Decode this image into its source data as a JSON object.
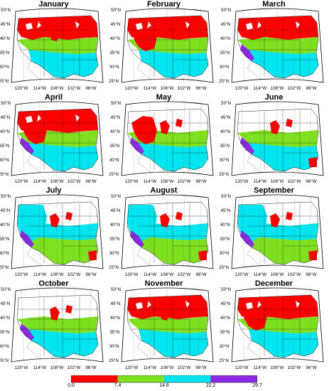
{
  "months": [
    "January",
    "February",
    "March",
    "April",
    "May",
    "June",
    "July",
    "August",
    "September",
    "October",
    "November",
    "December"
  ],
  "lat_labels": [
    "50°N",
    "45°N",
    "40°N",
    "35°N",
    "30°N",
    "25°N"
  ],
  "lon_labels": [
    "120°W",
    "114°W",
    "108°W",
    "102°W",
    "96°W"
  ],
  "legend": {
    "ticks": [
      "0.0",
      "7.4",
      "14.8",
      "22.2",
      "29.7"
    ],
    "colors": [
      "#ff0000",
      "#7fe01f",
      "#00e5f0",
      "#8b2be2"
    ]
  },
  "panel_fills": [
    [
      "red",
      "green",
      "cyan"
    ],
    [
      "red",
      "green",
      "cyan"
    ],
    [
      "red",
      "green",
      "cyan",
      "purple"
    ],
    [
      "red",
      "green",
      "cyan",
      "purple"
    ],
    [
      "red",
      "green",
      "cyan",
      "purple"
    ],
    [
      "red",
      "green",
      "cyan",
      "purple"
    ],
    [
      "red",
      "green",
      "cyan",
      "purple"
    ],
    [
      "red",
      "green",
      "cyan",
      "purple"
    ],
    [
      "red",
      "green",
      "cyan",
      "purple"
    ],
    [
      "red",
      "green",
      "cyan",
      "purple"
    ],
    [
      "red",
      "green",
      "cyan"
    ],
    [
      "red",
      "green",
      "cyan"
    ]
  ]
}
